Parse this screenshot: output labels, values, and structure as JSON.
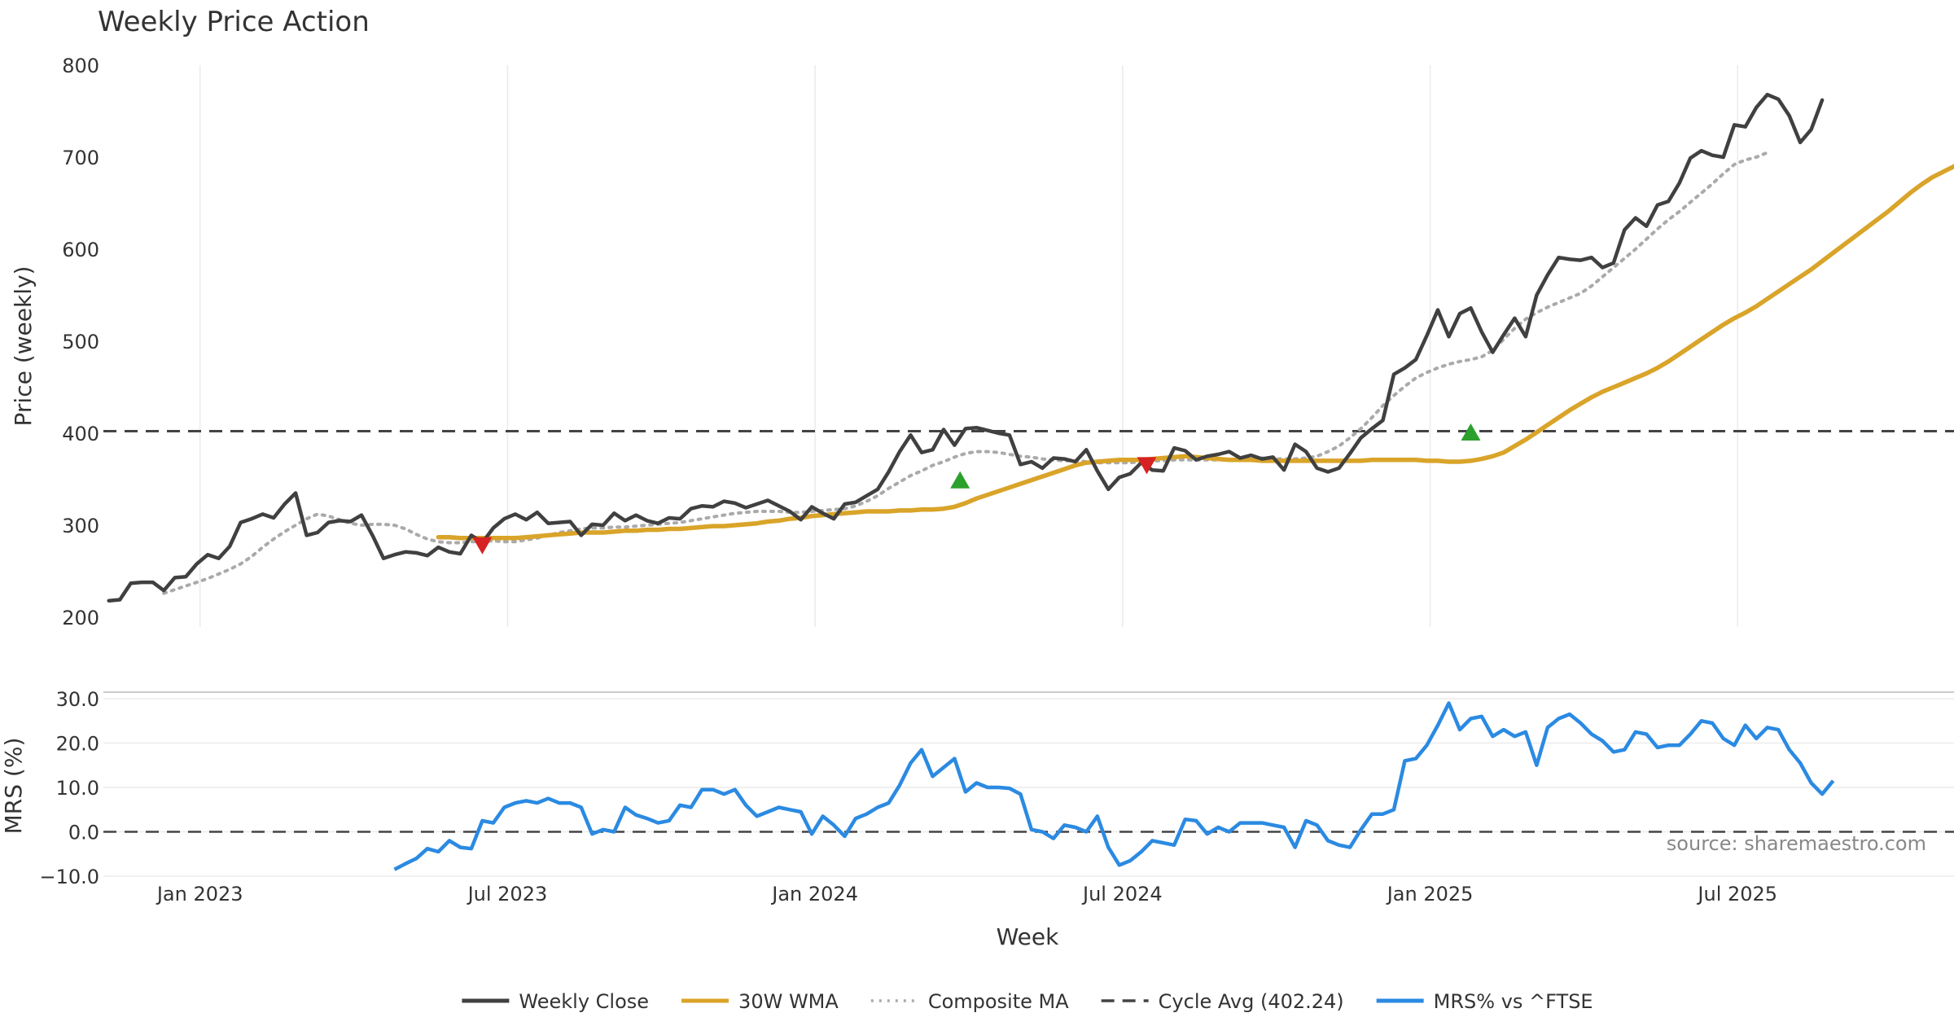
{
  "chart_data": {
    "type": "line",
    "title": "Weekly Price Action",
    "xlabel": "Week",
    "x_ticks": [
      "Jan 2023",
      "Jul 2023",
      "Jan 2024",
      "Jul 2024",
      "Jan 2025",
      "Jul 2025"
    ],
    "x_tick_weeks": [
      4.3,
      32.3,
      60.3,
      88.3,
      116.3,
      144.3
    ],
    "x_range": [
      -4.5,
      164
    ],
    "price_panel": {
      "ylabel": "Price (weekly)",
      "ylim": [
        200,
        800
      ],
      "yticks": [
        200,
        300,
        400,
        500,
        600,
        700,
        800
      ],
      "ytick_labels": [
        "200",
        "300",
        "400",
        "500",
        "600",
        "700",
        "800"
      ],
      "cycle_avg": 402.24,
      "series": [
        {
          "name": "Weekly Close",
          "color": "#404040",
          "start_week": -4,
          "values": [
            218,
            219,
            237,
            238,
            238,
            229,
            243,
            244,
            258,
            268,
            264,
            277,
            303,
            307,
            312,
            308,
            323,
            335,
            289,
            292,
            303,
            305,
            304,
            311,
            289,
            264,
            268,
            271,
            270,
            267,
            276,
            271,
            269,
            289,
            281,
            297,
            307,
            312,
            306,
            314,
            302,
            303,
            304,
            289,
            301,
            300,
            313,
            305,
            311,
            305,
            302,
            308,
            307,
            318,
            321,
            320,
            326,
            324,
            319,
            323,
            327,
            321,
            315,
            306,
            320,
            313,
            307,
            323,
            325,
            332,
            339,
            358,
            380,
            398,
            379,
            382,
            404,
            387,
            405,
            406,
            403,
            400,
            398,
            366,
            369,
            362,
            373,
            372,
            369,
            382,
            359,
            339,
            352,
            356,
            368,
            360,
            359,
            384,
            381,
            371,
            375,
            377,
            380,
            373,
            376,
            372,
            374,
            360,
            388,
            380,
            362,
            358,
            362,
            378,
            395,
            405,
            414,
            464,
            471,
            480,
            506,
            534,
            505,
            530,
            536,
            510,
            488,
            507,
            525,
            505,
            550,
            572,
            591,
            589,
            588,
            591,
            580,
            585,
            621,
            634,
            625,
            648,
            652,
            672,
            699,
            707,
            702,
            700,
            735,
            733,
            754,
            768,
            763,
            745,
            716,
            730,
            762
          ]
        },
        {
          "name": "30W WMA",
          "color": "#d9a429",
          "start_week": 26,
          "values": [
            287,
            287,
            286,
            286,
            286,
            286,
            286,
            286,
            287,
            288,
            289,
            290,
            291,
            292,
            292,
            292,
            293,
            294,
            294,
            295,
            295,
            296,
            296,
            297,
            298,
            299,
            299,
            300,
            301,
            302,
            304,
            305,
            307,
            308,
            310,
            311,
            312,
            313,
            314,
            315,
            315,
            315,
            316,
            316,
            317,
            317,
            318,
            320,
            324,
            329,
            333,
            337,
            341,
            345,
            349,
            353,
            357,
            361,
            365,
            368,
            369,
            370,
            371,
            371,
            371,
            372,
            373,
            374,
            375,
            374,
            373,
            372,
            371,
            371,
            371,
            370,
            370,
            370,
            370,
            370,
            370,
            370,
            370,
            370,
            370,
            371,
            371,
            371,
            371,
            371,
            370,
            370,
            369,
            369,
            370,
            372,
            375,
            379,
            386,
            393,
            401,
            409,
            417,
            425,
            432,
            439,
            445,
            450,
            455,
            460,
            465,
            471,
            478,
            486,
            494,
            502,
            510,
            518,
            525,
            531,
            538,
            546,
            554,
            562,
            570,
            578,
            587,
            596,
            605,
            614,
            623,
            632,
            641,
            651,
            661,
            670,
            678,
            684,
            690,
            696
          ]
        },
        {
          "name": "Composite MA",
          "color": "#aaaaaa",
          "start_week": 1,
          "values": [
            226,
            230,
            234,
            238,
            242,
            247,
            252,
            258,
            266,
            276,
            285,
            293,
            300,
            307,
            312,
            310,
            306,
            302,
            300,
            301,
            301,
            300,
            296,
            290,
            285,
            282,
            281,
            281,
            282,
            282,
            283,
            282,
            282,
            284,
            286,
            289,
            292,
            294,
            296,
            297,
            297,
            298,
            298,
            299,
            300,
            301,
            302,
            303,
            305,
            307,
            309,
            311,
            313,
            314,
            315,
            315,
            315,
            314,
            314,
            315,
            316,
            317,
            318,
            321,
            326,
            332,
            340,
            347,
            354,
            359,
            365,
            369,
            374,
            378,
            380,
            380,
            379,
            377,
            375,
            374,
            372,
            371,
            370,
            370,
            369,
            368,
            368,
            368,
            368,
            369,
            370,
            370,
            371,
            371,
            371,
            371,
            371,
            371,
            372,
            373,
            373,
            372,
            372,
            372,
            373,
            375,
            380,
            386,
            395,
            405,
            417,
            430,
            441,
            451,
            460,
            466,
            471,
            475,
            478,
            480,
            483,
            490,
            502,
            514,
            524,
            531,
            537,
            542,
            547,
            552,
            560,
            570,
            580,
            590,
            600,
            611,
            622,
            632,
            641,
            651,
            661,
            671,
            682,
            692,
            697,
            700,
            705
          ]
        }
      ],
      "signals": [
        {
          "type": "sell",
          "week": 30,
          "price": 279,
          "color": "#d62222"
        },
        {
          "type": "buy",
          "week": 73.5,
          "price": 348,
          "color": "#2ca02c"
        },
        {
          "type": "sell",
          "week": 90.5,
          "price": 366,
          "color": "#d62222"
        },
        {
          "type": "buy",
          "week": 120,
          "price": 400,
          "color": "#2ca02c"
        }
      ]
    },
    "mrs_panel": {
      "ylabel": "MRS (%)",
      "ylim": [
        -10,
        30
      ],
      "yticks": [
        -10,
        0,
        10,
        20,
        30
      ],
      "ytick_labels": [
        "−10.0",
        "0.0",
        "10.0",
        "20.0",
        "30.0"
      ],
      "series": {
        "name": "MRS% vs ^FTSE",
        "color": "#2b8ae2",
        "start_week": 22,
        "values": [
          -8.5,
          -7.2,
          -6,
          -3.8,
          -4.5,
          -2,
          -3.5,
          -3.8,
          2.5,
          2,
          5.5,
          6.5,
          7,
          6.5,
          7.5,
          6.5,
          6.5,
          5.5,
          -0.5,
          0.5,
          0,
          5.5,
          3.8,
          3,
          2,
          2.5,
          6,
          5.5,
          9.5,
          9.5,
          8.5,
          9.5,
          6,
          3.5,
          4.5,
          5.5,
          5,
          4.5,
          -0.5,
          3.5,
          1.5,
          -1,
          3,
          4,
          5.5,
          6.5,
          10.5,
          15.5,
          18.5,
          12.5,
          14.5,
          16.5,
          9,
          11,
          10,
          10,
          9.8,
          8.5,
          0.5,
          0,
          -1.5,
          1.5,
          1,
          0,
          3.5,
          -3.5,
          -7.5,
          -6.5,
          -4.5,
          -2,
          -2.5,
          -3,
          2.8,
          2.5,
          -0.5,
          1,
          0,
          2,
          2,
          2,
          1.5,
          1,
          -3.5,
          2.5,
          1.5,
          -2,
          -3,
          -3.5,
          0.5,
          4,
          4,
          5,
          16,
          16.5,
          19.5,
          24,
          29,
          23,
          25.5,
          26,
          21.5,
          23,
          21.5,
          22.5,
          15,
          23.5,
          25.5,
          26.5,
          24.5,
          22,
          20.5,
          18,
          18.5,
          22.5,
          22,
          19,
          19.5,
          19.5,
          22,
          25,
          24.5,
          21,
          19.5,
          24,
          21,
          23.5,
          23,
          18.5,
          15.5,
          11,
          8.5,
          11.5
        ]
      },
      "source": "source: sharemaestro.com"
    },
    "legend": [
      {
        "label": "Weekly Close",
        "style": "solid",
        "color": "#404040"
      },
      {
        "label": "30W WMA",
        "style": "solid",
        "color": "#d9a429"
      },
      {
        "label": "Composite MA",
        "style": "dotted",
        "color": "#aaaaaa"
      },
      {
        "label": "Cycle Avg (402.24)",
        "style": "dashed",
        "color": "#444444"
      },
      {
        "label": "MRS% vs ^FTSE",
        "style": "solid",
        "color": "#2b8ae2"
      }
    ]
  }
}
